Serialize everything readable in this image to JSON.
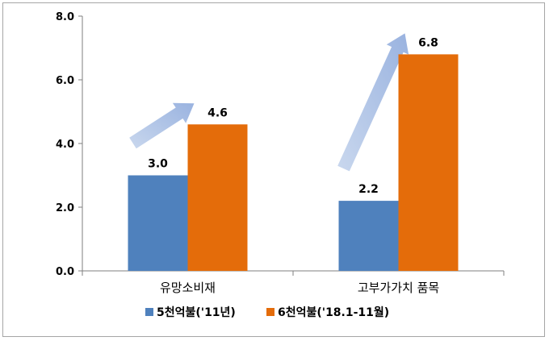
{
  "chart_data": {
    "type": "bar",
    "categories": [
      "유망소비재",
      "고부가가치 품목"
    ],
    "series": [
      {
        "name": "5천억불('11년)",
        "values": [
          3.0,
          2.2
        ],
        "color": "#4f81bd"
      },
      {
        "name": "6천억불('18.1-11월)",
        "values": [
          4.6,
          6.8
        ],
        "color": "#e46c0a"
      }
    ],
    "data_labels": [
      [
        "3.0",
        "2.2"
      ],
      [
        "4.6",
        "6.8"
      ]
    ],
    "ylim": [
      0,
      8
    ],
    "yticks": [
      "0.0",
      "2.0",
      "4.0",
      "6.0",
      "8.0"
    ],
    "grid": false,
    "legend": "bottom",
    "annotations": [
      "growth-arrow",
      "growth-arrow"
    ]
  }
}
